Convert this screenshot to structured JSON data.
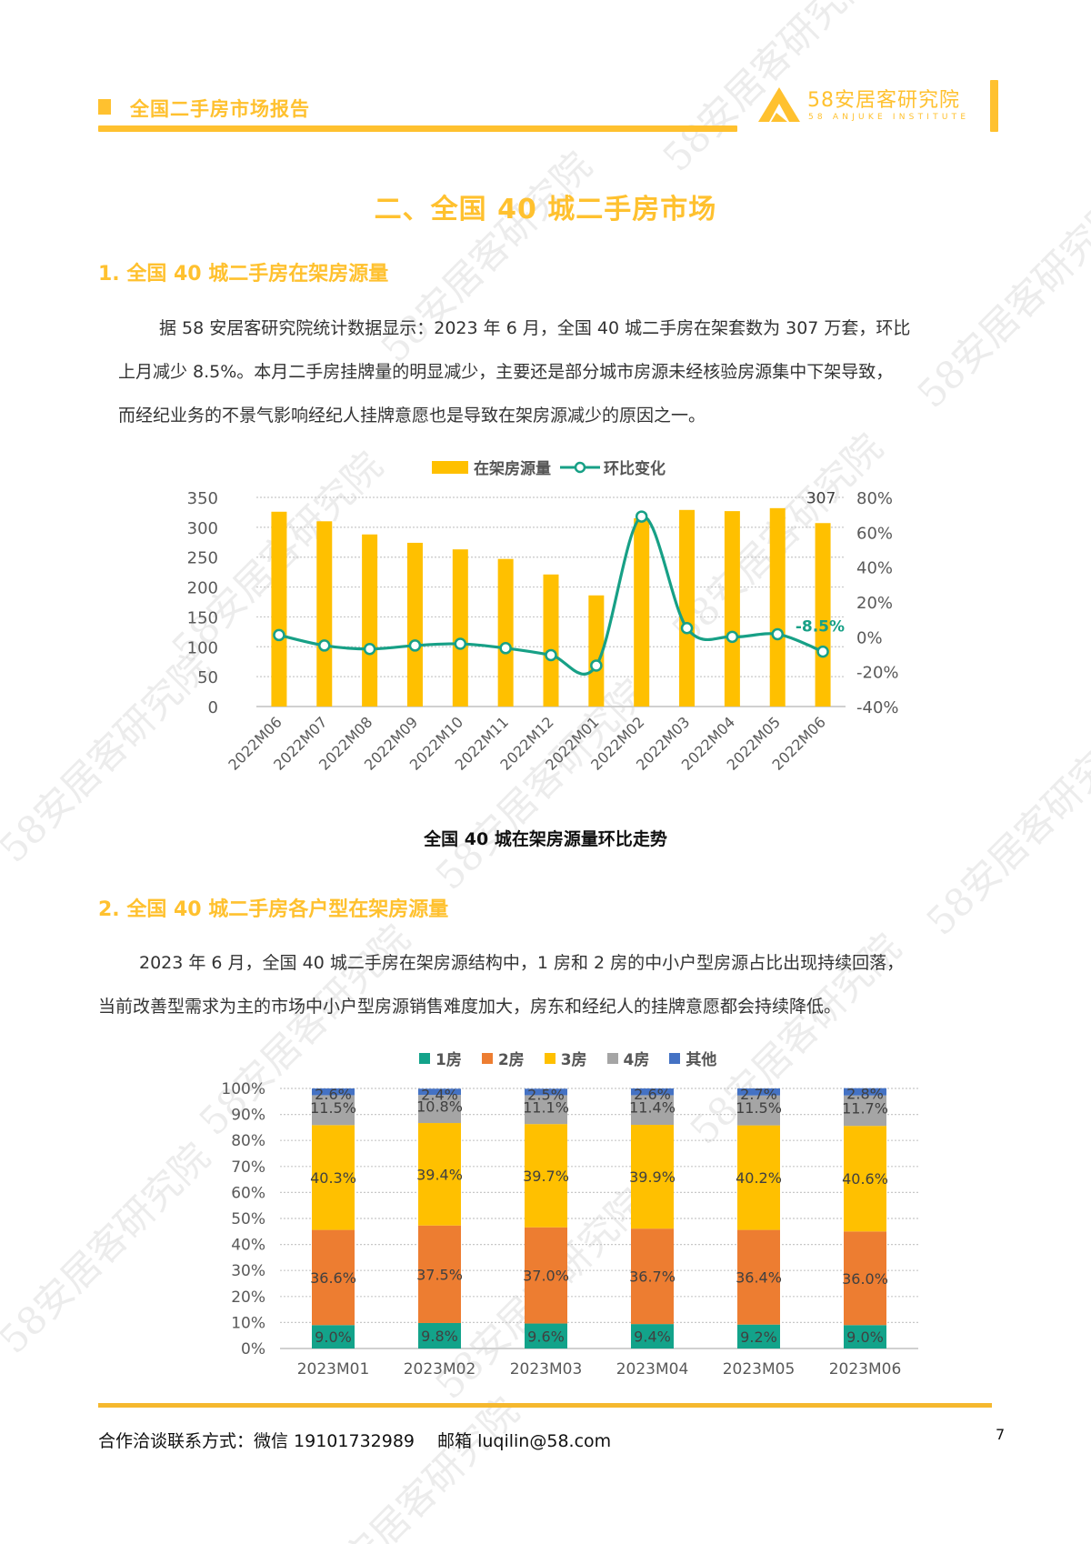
{
  "header": {
    "report_title": "全国二手房市场报告",
    "logo_cn": "58安居客研究院",
    "logo_en": "58 ANJUKE INSTITUTE",
    "accent_color": "#FFC12F"
  },
  "section": {
    "title": "二、全国 40 城二手房市场"
  },
  "part1": {
    "heading": "1. 全国 40 城二手房在架房源量",
    "paragraph_lines": [
      "据 58 安居客研究院统计数据显示：2023 年 6 月，全国 40 城二手房在架套数为 307 万套，环比",
      "上月减少 8.5%。本月二手房挂牌量的明显减少，主要还是部分城市房源未经核验房源集中下架导致，",
      "而经纪业务的不景气影响经纪人挂牌意愿也是导致在架房源减少的原因之一。"
    ],
    "chart_caption": "全国 40 城在架房源量环比走势"
  },
  "part2": {
    "heading": "2. 全国 40 城二手房各户型在架房源量",
    "paragraph_lines": [
      "2023 年 6 月，全国 40 城二手房在架房源结构中，1 房和 2 房的中小户型房源占比出现持续回落，",
      "当前改善型需求为主的市场中小户型房源销售难度加大，房东和经纪人的挂牌意愿都会持续降低。"
    ]
  },
  "footer": {
    "contact": "合作洽谈联系方式：微信 19101732989　 邮箱 luqilin@58.com",
    "page_number": "7"
  },
  "watermark": "58安居客研究院",
  "chart_data": [
    {
      "type": "bar+line",
      "title": "全国 40 城在架房源量环比走势",
      "categories": [
        "2022M06",
        "2022M07",
        "2022M08",
        "2022M09",
        "2022M10",
        "2022M11",
        "2022M12",
        "2022M01",
        "2022M02",
        "2022M03",
        "2022M04",
        "2022M05",
        "2022M06"
      ],
      "series": [
        {
          "name": "在架房源量",
          "type": "bar",
          "axis": "left",
          "color": "#FFC000",
          "values": [
            326,
            310,
            288,
            274,
            263,
            247,
            221,
            186,
            315,
            329,
            327,
            332,
            307
          ]
        },
        {
          "name": "环比变化",
          "type": "line",
          "axis": "right",
          "color": "#17A086",
          "unit": "%",
          "values": [
            1.0,
            -5.0,
            -7.0,
            -5.0,
            -4.0,
            -6.5,
            -10.5,
            -16.5,
            69.0,
            5.0,
            0.0,
            1.5,
            -8.5
          ]
        }
      ],
      "annotations": [
        {
          "label": "307",
          "category": "2022M06",
          "series": "在架房源量",
          "position": "last"
        },
        {
          "label": "-8.5%",
          "category": "2022M06",
          "series": "环比变化",
          "position": "last",
          "color": "#17A086"
        }
      ],
      "y_left": {
        "ticks": [
          "0",
          "50",
          "100",
          "150",
          "200",
          "250",
          "300",
          "350"
        ],
        "range": [
          0,
          350
        ]
      },
      "y_right": {
        "ticks": [
          "-40%",
          "-20%",
          "0%",
          "20%",
          "40%",
          "60%",
          "80%"
        ],
        "range": [
          -40,
          80
        ]
      },
      "legend_position": "top",
      "grid": true
    },
    {
      "type": "stacked-bar-100",
      "categories": [
        "2023M01",
        "2023M02",
        "2023M03",
        "2023M04",
        "2023M05",
        "2023M06"
      ],
      "series": [
        {
          "name": "1房",
          "color": "#13A38A",
          "values": [
            9.0,
            9.8,
            9.6,
            9.4,
            9.2,
            9.0
          ]
        },
        {
          "name": "2房",
          "color": "#ED7D31",
          "values": [
            36.6,
            37.5,
            37.0,
            36.7,
            36.4,
            36.0
          ]
        },
        {
          "name": "3房",
          "color": "#FFC000",
          "values": [
            40.3,
            39.4,
            39.7,
            39.9,
            40.2,
            40.6
          ]
        },
        {
          "name": "4房",
          "color": "#A5A5A5",
          "values": [
            11.5,
            10.8,
            11.1,
            11.4,
            11.5,
            11.7
          ]
        },
        {
          "name": "其他",
          "color": "#4472C4",
          "values": [
            2.6,
            2.4,
            2.5,
            2.6,
            2.7,
            2.8
          ]
        }
      ],
      "y_axis": {
        "ticks": [
          "0%",
          "10%",
          "20%",
          "30%",
          "40%",
          "50%",
          "60%",
          "70%",
          "80%",
          "90%",
          "100%"
        ],
        "range": [
          0,
          100
        ]
      },
      "legend_position": "top",
      "grid": true,
      "data_labels": true
    }
  ]
}
